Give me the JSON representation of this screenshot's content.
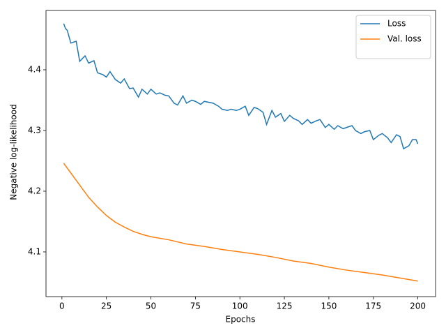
{
  "chart_data": {
    "type": "line",
    "xlabel": "Epochs",
    "ylabel": "Negative log-likelihood",
    "xlim": [
      -8.95,
      209.95
    ],
    "ylim": [
      4.0264,
      4.4977
    ],
    "xticks": [
      0,
      25,
      50,
      75,
      100,
      125,
      150,
      175,
      200
    ],
    "yticks": [
      4.1,
      4.2,
      4.3,
      4.4
    ],
    "legend": "upper right",
    "series": [
      {
        "name": "Loss",
        "color": "#1f77b4",
        "x": [
          1,
          2,
          3,
          5,
          8,
          10,
          13,
          15,
          18,
          20,
          23,
          25,
          27,
          30,
          33,
          35,
          38,
          40,
          43,
          45,
          48,
          50,
          53,
          55,
          58,
          60,
          63,
          65,
          68,
          70,
          73,
          75,
          78,
          80,
          85,
          88,
          90,
          93,
          95,
          98,
          100,
          103,
          105,
          108,
          110,
          113,
          115,
          118,
          120,
          123,
          125,
          128,
          130,
          133,
          135,
          138,
          140,
          143,
          145,
          148,
          150,
          153,
          155,
          158,
          160,
          163,
          165,
          168,
          170,
          173,
          175,
          178,
          180,
          183,
          185,
          188,
          190,
          192,
          195,
          197,
          199,
          200
        ],
        "values": [
          4.476,
          4.468,
          4.465,
          4.444,
          4.447,
          4.414,
          4.423,
          4.411,
          4.415,
          4.395,
          4.392,
          4.388,
          4.397,
          4.384,
          4.378,
          4.385,
          4.369,
          4.37,
          4.355,
          4.368,
          4.36,
          4.368,
          4.36,
          4.362,
          4.358,
          4.357,
          4.345,
          4.342,
          4.357,
          4.345,
          4.35,
          4.348,
          4.343,
          4.348,
          4.345,
          4.34,
          4.335,
          4.333,
          4.335,
          4.333,
          4.335,
          4.34,
          4.325,
          4.338,
          4.336,
          4.33,
          4.31,
          4.333,
          4.322,
          4.328,
          4.315,
          4.325,
          4.32,
          4.316,
          4.31,
          4.318,
          4.312,
          4.316,
          4.318,
          4.305,
          4.31,
          4.302,
          4.308,
          4.303,
          4.305,
          4.308,
          4.3,
          4.295,
          4.298,
          4.3,
          4.285,
          4.292,
          4.295,
          4.288,
          4.28,
          4.293,
          4.29,
          4.27,
          4.275,
          4.285,
          4.285,
          4.278
        ]
      },
      {
        "name": "Val. loss",
        "color": "#ff7f0e",
        "x": [
          1,
          5,
          10,
          15,
          20,
          25,
          30,
          35,
          40,
          45,
          50,
          60,
          70,
          80,
          90,
          100,
          110,
          120,
          130,
          140,
          150,
          160,
          170,
          180,
          190,
          200
        ],
        "values": [
          4.246,
          4.23,
          4.21,
          4.19,
          4.174,
          4.16,
          4.149,
          4.141,
          4.134,
          4.129,
          4.125,
          4.12,
          4.113,
          4.109,
          4.104,
          4.1,
          4.096,
          4.091,
          4.085,
          4.081,
          4.075,
          4.07,
          4.066,
          4.062,
          4.057,
          4.052
        ]
      }
    ]
  }
}
